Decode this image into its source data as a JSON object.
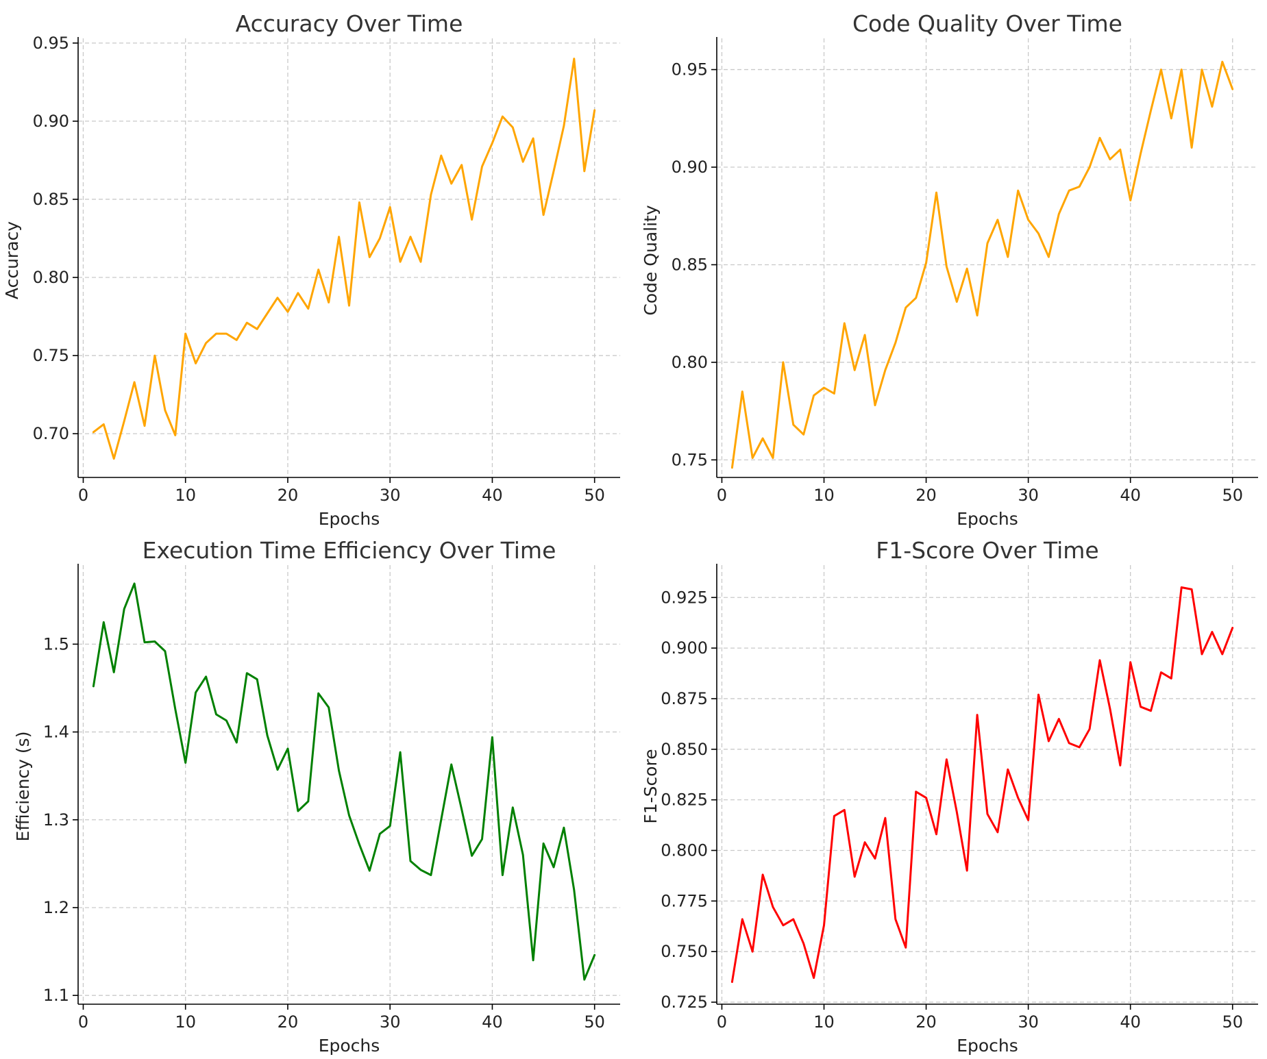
{
  "chart_data": [
    {
      "type": "line",
      "title": "Accuracy Over Time",
      "xlabel": "Epochs",
      "ylabel": "Accuracy",
      "xlim": [
        -0.5,
        52.5
      ],
      "ylim": [
        0.672,
        0.953
      ],
      "xticks": [
        0,
        10,
        20,
        30,
        40,
        50
      ],
      "xtick_labels": [
        "0",
        "10",
        "20",
        "30",
        "40",
        "50"
      ],
      "yticks": [
        0.7,
        0.75,
        0.8,
        0.85,
        0.9,
        0.95
      ],
      "ytick_labels": [
        "0.70",
        "0.75",
        "0.80",
        "0.85",
        "0.90",
        "0.95"
      ],
      "color": "#ffa500",
      "grid": true,
      "series": [
        {
          "name": "Accuracy",
          "x": [
            1,
            2,
            3,
            4,
            5,
            6,
            7,
            8,
            9,
            10,
            11,
            12,
            13,
            14,
            15,
            16,
            17,
            18,
            19,
            20,
            21,
            22,
            23,
            24,
            25,
            26,
            27,
            28,
            29,
            30,
            31,
            32,
            33,
            34,
            35,
            36,
            37,
            38,
            39,
            40,
            41,
            42,
            43,
            44,
            45,
            46,
            47,
            48,
            49,
            50
          ],
          "values": [
            0.701,
            0.706,
            0.684,
            0.708,
            0.733,
            0.705,
            0.75,
            0.715,
            0.699,
            0.764,
            0.745,
            0.758,
            0.764,
            0.764,
            0.76,
            0.771,
            0.767,
            0.777,
            0.787,
            0.778,
            0.79,
            0.78,
            0.805,
            0.784,
            0.826,
            0.782,
            0.848,
            0.813,
            0.825,
            0.845,
            0.81,
            0.826,
            0.81,
            0.853,
            0.878,
            0.86,
            0.872,
            0.837,
            0.871,
            0.886,
            0.903,
            0.896,
            0.874,
            0.889,
            0.84,
            0.868,
            0.897,
            0.94,
            0.868,
            0.907
          ]
        }
      ]
    },
    {
      "type": "line",
      "title": "Code Quality Over Time",
      "xlabel": "Epochs",
      "ylabel": "Code Quality",
      "xlim": [
        -0.5,
        52.5
      ],
      "ylim": [
        0.741,
        0.966
      ],
      "xticks": [
        0,
        10,
        20,
        30,
        40,
        50
      ],
      "xtick_labels": [
        "0",
        "10",
        "20",
        "30",
        "40",
        "50"
      ],
      "yticks": [
        0.75,
        0.8,
        0.85,
        0.9,
        0.95
      ],
      "ytick_labels": [
        "0.75",
        "0.80",
        "0.85",
        "0.90",
        "0.95"
      ],
      "color": "#ffa500",
      "grid": true,
      "series": [
        {
          "name": "Code Quality",
          "x": [
            1,
            2,
            3,
            4,
            5,
            6,
            7,
            8,
            9,
            10,
            11,
            12,
            13,
            14,
            15,
            16,
            17,
            18,
            19,
            20,
            21,
            22,
            23,
            24,
            25,
            26,
            27,
            28,
            29,
            30,
            31,
            32,
            33,
            34,
            35,
            36,
            37,
            38,
            39,
            40,
            41,
            42,
            43,
            44,
            45,
            46,
            47,
            48,
            49,
            50
          ],
          "values": [
            0.746,
            0.785,
            0.751,
            0.761,
            0.751,
            0.8,
            0.768,
            0.763,
            0.783,
            0.787,
            0.784,
            0.82,
            0.796,
            0.814,
            0.778,
            0.796,
            0.81,
            0.828,
            0.833,
            0.851,
            0.887,
            0.849,
            0.831,
            0.848,
            0.824,
            0.861,
            0.873,
            0.854,
            0.888,
            0.873,
            0.866,
            0.854,
            0.876,
            0.888,
            0.89,
            0.9,
            0.915,
            0.904,
            0.909,
            0.883,
            0.907,
            0.929,
            0.95,
            0.925,
            0.95,
            0.91,
            0.95,
            0.931,
            0.954,
            0.94
          ]
        }
      ]
    },
    {
      "type": "line",
      "title": "Execution Time Efficiency Over Time",
      "xlabel": "Epochs",
      "ylabel": "Efficiency (s)",
      "xlim": [
        -0.5,
        52.5
      ],
      "ylim": [
        1.09,
        1.59
      ],
      "xticks": [
        0,
        10,
        20,
        30,
        40,
        50
      ],
      "xtick_labels": [
        "0",
        "10",
        "20",
        "30",
        "40",
        "50"
      ],
      "yticks": [
        1.1,
        1.2,
        1.3,
        1.4,
        1.5
      ],
      "ytick_labels": [
        "1.1",
        "1.2",
        "1.3",
        "1.4",
        "1.5"
      ],
      "color": "#008000",
      "grid": true,
      "series": [
        {
          "name": "Efficiency (s)",
          "x": [
            1,
            2,
            3,
            4,
            5,
            6,
            7,
            8,
            9,
            10,
            11,
            12,
            13,
            14,
            15,
            16,
            17,
            18,
            19,
            20,
            21,
            22,
            23,
            24,
            25,
            26,
            27,
            28,
            29,
            30,
            31,
            32,
            33,
            34,
            35,
            36,
            37,
            38,
            39,
            40,
            41,
            42,
            43,
            44,
            45,
            46,
            47,
            48,
            49,
            50
          ],
          "values": [
            1.452,
            1.525,
            1.468,
            1.54,
            1.569,
            1.502,
            1.503,
            1.492,
            1.426,
            1.365,
            1.445,
            1.463,
            1.42,
            1.413,
            1.388,
            1.467,
            1.46,
            1.396,
            1.357,
            1.381,
            1.31,
            1.321,
            1.444,
            1.428,
            1.356,
            1.305,
            1.272,
            1.242,
            1.284,
            1.293,
            1.377,
            1.253,
            1.243,
            1.237,
            1.3,
            1.363,
            1.312,
            1.259,
            1.278,
            1.394,
            1.237,
            1.314,
            1.26,
            1.14,
            1.273,
            1.246,
            1.291,
            1.22,
            1.118,
            1.146
          ]
        }
      ]
    },
    {
      "type": "line",
      "title": "F1-Score Over Time",
      "xlabel": "Epochs",
      "ylabel": "F1-Score",
      "xlim": [
        -0.5,
        52.5
      ],
      "ylim": [
        0.724,
        0.941
      ],
      "xticks": [
        0,
        10,
        20,
        30,
        40,
        50
      ],
      "xtick_labels": [
        "0",
        "10",
        "20",
        "30",
        "40",
        "50"
      ],
      "yticks": [
        0.725,
        0.75,
        0.775,
        0.8,
        0.825,
        0.85,
        0.875,
        0.9,
        0.925
      ],
      "ytick_labels": [
        "0.725",
        "0.750",
        "0.775",
        "0.800",
        "0.825",
        "0.850",
        "0.875",
        "0.900",
        "0.925"
      ],
      "color": "#ff0000",
      "grid": true,
      "series": [
        {
          "name": "F1-Score",
          "x": [
            1,
            2,
            3,
            4,
            5,
            6,
            7,
            8,
            9,
            10,
            11,
            12,
            13,
            14,
            15,
            16,
            17,
            18,
            19,
            20,
            21,
            22,
            23,
            24,
            25,
            26,
            27,
            28,
            29,
            30,
            31,
            32,
            33,
            34,
            35,
            36,
            37,
            38,
            39,
            40,
            41,
            42,
            43,
            44,
            45,
            46,
            47,
            48,
            49,
            50
          ],
          "values": [
            0.735,
            0.766,
            0.75,
            0.788,
            0.772,
            0.763,
            0.766,
            0.754,
            0.737,
            0.763,
            0.817,
            0.82,
            0.787,
            0.804,
            0.796,
            0.816,
            0.766,
            0.752,
            0.829,
            0.826,
            0.808,
            0.845,
            0.819,
            0.79,
            0.867,
            0.818,
            0.809,
            0.84,
            0.826,
            0.815,
            0.877,
            0.854,
            0.865,
            0.853,
            0.851,
            0.86,
            0.894,
            0.87,
            0.842,
            0.893,
            0.871,
            0.869,
            0.888,
            0.885,
            0.93,
            0.929,
            0.897,
            0.908,
            0.897,
            0.91
          ]
        }
      ]
    }
  ]
}
